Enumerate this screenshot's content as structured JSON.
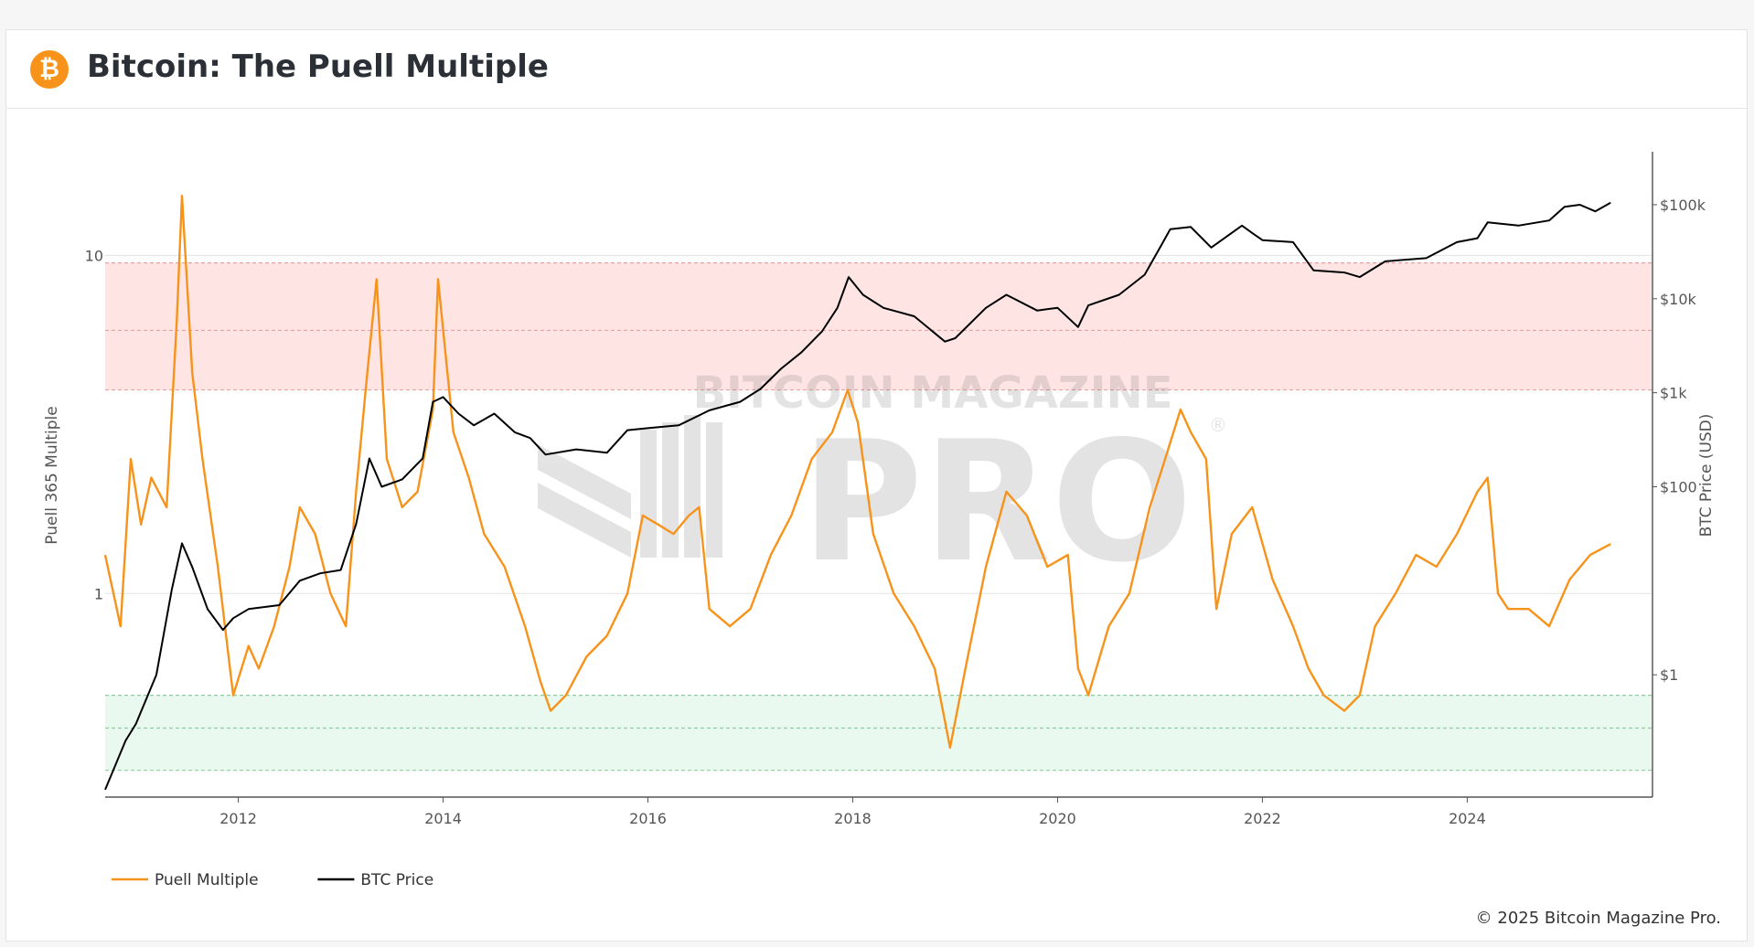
{
  "header": {
    "title": "Bitcoin: The Puell Multiple",
    "logo_icon": "bitcoin-logo-icon",
    "logo_glyph": "₿"
  },
  "footer": {
    "copyright": "© 2025 Bitcoin Magazine Pro."
  },
  "watermark": {
    "top": "BITCOIN MAGAZINE",
    "bottom": "PRO",
    "mark": "®"
  },
  "colors": {
    "puell": "#f7931a",
    "price": "#000000",
    "red_band": "#ffe4e4",
    "green_band": "#e9f9ef",
    "red_line": "#e8a0a0",
    "green_line": "#8fcca0",
    "grid": "#e3e3e3",
    "axis_text": "#555555"
  },
  "chart_data": {
    "type": "line",
    "title": "Bitcoin: The Puell Multiple",
    "y_scale": "log",
    "ylabel": "Puell 365 Multiple",
    "ylabel2": "BTC Price (USD)",
    "xlim": [
      2010.7,
      2025.8
    ],
    "ylim": [
      0.25,
      20
    ],
    "ylim2": [
      0.05,
      350000
    ],
    "x_ticks": [
      2012,
      2014,
      2016,
      2018,
      2020,
      2022,
      2024
    ],
    "y_ticks": [
      {
        "value": 1,
        "label": "1"
      },
      {
        "value": 10,
        "label": "10"
      }
    ],
    "y2_ticks": [
      {
        "value": 1,
        "label": "$1"
      },
      {
        "value": 100,
        "label": "$100"
      },
      {
        "value": 1000,
        "label": "$1k"
      },
      {
        "value": 10000,
        "label": "$10k"
      },
      {
        "value": 100000,
        "label": "$100k"
      }
    ],
    "bands": [
      {
        "name": "red-zone",
        "from": 4,
        "to": 9.5,
        "inner_line": 6
      },
      {
        "name": "green-zone",
        "from": 0.3,
        "to": 0.5,
        "inner_line": 0.4
      }
    ],
    "legend_position": "bottom-left",
    "series": [
      {
        "name": "Puell Multiple",
        "axis": "left",
        "x": [
          2010.7,
          2010.85,
          2010.95,
          2011.05,
          2011.15,
          2011.3,
          2011.4,
          2011.45,
          2011.55,
          2011.65,
          2011.8,
          2011.95,
          2012.1,
          2012.2,
          2012.35,
          2012.5,
          2012.6,
          2012.75,
          2012.9,
          2013.05,
          2013.15,
          2013.25,
          2013.35,
          2013.45,
          2013.6,
          2013.75,
          2013.9,
          2013.95,
          2014.1,
          2014.25,
          2014.4,
          2014.6,
          2014.8,
          2014.95,
          2015.05,
          2015.2,
          2015.4,
          2015.6,
          2015.8,
          2015.95,
          2016.1,
          2016.25,
          2016.4,
          2016.5,
          2016.6,
          2016.8,
          2017.0,
          2017.2,
          2017.4,
          2017.6,
          2017.8,
          2017.95,
          2018.05,
          2018.2,
          2018.4,
          2018.6,
          2018.8,
          2018.95,
          2019.1,
          2019.3,
          2019.5,
          2019.7,
          2019.9,
          2020.1,
          2020.2,
          2020.3,
          2020.5,
          2020.7,
          2020.9,
          2021.05,
          2021.2,
          2021.3,
          2021.45,
          2021.55,
          2021.7,
          2021.9,
          2022.1,
          2022.3,
          2022.45,
          2022.6,
          2022.8,
          2022.95,
          2023.1,
          2023.3,
          2023.5,
          2023.7,
          2023.9,
          2024.1,
          2024.2,
          2024.3,
          2024.4,
          2024.6,
          2024.8,
          2025.0,
          2025.2,
          2025.4
        ],
        "y": [
          1.3,
          0.8,
          2.5,
          1.6,
          2.2,
          1.8,
          6.5,
          15,
          4.5,
          2.5,
          1.2,
          0.5,
          0.7,
          0.6,
          0.8,
          1.2,
          1.8,
          1.5,
          1.0,
          0.8,
          2.0,
          4.2,
          8.5,
          2.5,
          1.8,
          2.0,
          3.5,
          8.5,
          3.0,
          2.2,
          1.5,
          1.2,
          0.8,
          0.55,
          0.45,
          0.5,
          0.65,
          0.75,
          1.0,
          1.7,
          1.6,
          1.5,
          1.7,
          1.8,
          0.9,
          0.8,
          0.9,
          1.3,
          1.7,
          2.5,
          3.0,
          4.0,
          3.2,
          1.5,
          1.0,
          0.8,
          0.6,
          0.35,
          0.6,
          1.2,
          2.0,
          1.7,
          1.2,
          1.3,
          0.6,
          0.5,
          0.8,
          1.0,
          1.8,
          2.5,
          3.5,
          3.0,
          2.5,
          0.9,
          1.5,
          1.8,
          1.1,
          0.8,
          0.6,
          0.5,
          0.45,
          0.5,
          0.8,
          1.0,
          1.3,
          1.2,
          1.5,
          2.0,
          2.2,
          1.0,
          0.9,
          0.9,
          0.8,
          1.1,
          1.3,
          1.4
        ]
      },
      {
        "name": "BTC Price",
        "axis": "right",
        "x": [
          2010.7,
          2010.9,
          2011.0,
          2011.2,
          2011.35,
          2011.45,
          2011.55,
          2011.7,
          2011.85,
          2011.95,
          2012.1,
          2012.4,
          2012.6,
          2012.8,
          2013.0,
          2013.15,
          2013.28,
          2013.4,
          2013.6,
          2013.8,
          2013.9,
          2014.0,
          2014.15,
          2014.3,
          2014.5,
          2014.7,
          2014.85,
          2015.0,
          2015.3,
          2015.6,
          2015.8,
          2016.0,
          2016.3,
          2016.6,
          2016.9,
          2017.1,
          2017.3,
          2017.5,
          2017.7,
          2017.85,
          2017.96,
          2018.1,
          2018.3,
          2018.6,
          2018.9,
          2019.0,
          2019.3,
          2019.5,
          2019.8,
          2020.0,
          2020.2,
          2020.3,
          2020.6,
          2020.85,
          2021.0,
          2021.1,
          2021.3,
          2021.5,
          2021.8,
          2021.9,
          2022.0,
          2022.3,
          2022.5,
          2022.8,
          2022.95,
          2023.2,
          2023.6,
          2023.9,
          2024.1,
          2024.2,
          2024.5,
          2024.8,
          2024.95,
          2025.1,
          2025.25,
          2025.4
        ],
        "y": [
          0.06,
          0.2,
          0.3,
          1.0,
          8,
          25,
          14,
          5,
          3,
          4,
          5,
          5.5,
          10,
          12,
          13,
          40,
          200,
          100,
          120,
          200,
          800,
          900,
          600,
          450,
          600,
          380,
          330,
          220,
          250,
          230,
          400,
          420,
          450,
          650,
          800,
          1100,
          1800,
          2700,
          4500,
          8000,
          17000,
          11000,
          8000,
          6500,
          3500,
          3800,
          8000,
          11000,
          7500,
          8000,
          5000,
          8500,
          11000,
          18000,
          35000,
          55000,
          58000,
          35000,
          60000,
          50000,
          42000,
          40000,
          20000,
          19000,
          17000,
          25000,
          27000,
          40000,
          44000,
          65000,
          60000,
          68000,
          95000,
          100000,
          85000,
          105000
        ]
      }
    ]
  }
}
